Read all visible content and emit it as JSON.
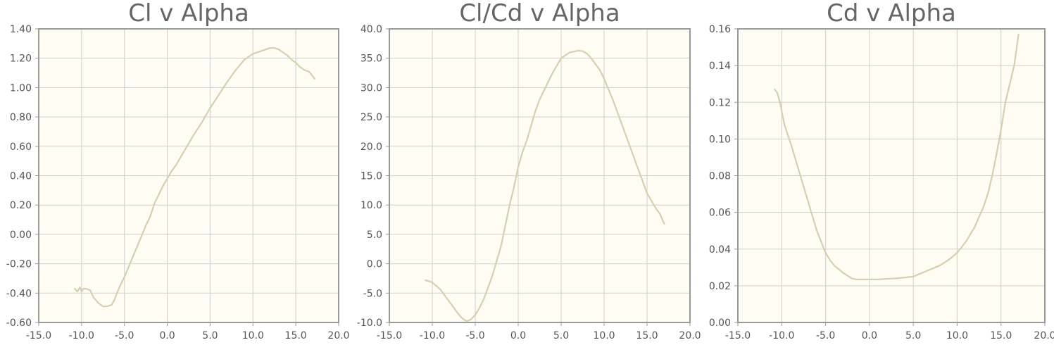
{
  "line_color": "#d6cfb0",
  "chart_data": [
    {
      "type": "line",
      "title": "Cl v Alpha",
      "xlim": [
        -15,
        20
      ],
      "ylim": [
        -0.6,
        1.4
      ],
      "x_ticks": [
        "-15.0",
        "-10.0",
        "-5.0",
        "0.0",
        "5.0",
        "10.0",
        "15.0",
        "20.0"
      ],
      "y_ticks": [
        "-0.60",
        "-0.40",
        "-0.20",
        "0.00",
        "0.20",
        "0.40",
        "0.60",
        "0.80",
        "1.00",
        "1.20",
        "1.40"
      ],
      "grid": true,
      "series": [
        {
          "x": [
            -10.8,
            -10.5,
            -10.2,
            -10.0,
            -9.8,
            -9.5,
            -9.0,
            -8.6,
            -8.3,
            -8.0,
            -7.5,
            -7.0,
            -6.5,
            -6.2,
            -6.0,
            -5.8,
            -5.5,
            -5.0,
            -4.5,
            -4.0,
            -3.5,
            -3.0,
            -2.5,
            -2.0,
            -1.5,
            -1.0,
            -0.5,
            0.0,
            0.5,
            1.0,
            2.0,
            3.0,
            4.0,
            5.0,
            6.0,
            7.0,
            8.0,
            9.0,
            10.0,
            11.0,
            12.0,
            12.5,
            13.0,
            13.5,
            14.0,
            14.5,
            15.0,
            15.5,
            16.0,
            16.5,
            16.8,
            17.2
          ],
          "y": [
            -0.37,
            -0.39,
            -0.36,
            -0.39,
            -0.37,
            -0.37,
            -0.38,
            -0.43,
            -0.45,
            -0.47,
            -0.49,
            -0.49,
            -0.48,
            -0.45,
            -0.42,
            -0.39,
            -0.35,
            -0.29,
            -0.22,
            -0.15,
            -0.08,
            -0.01,
            0.06,
            0.12,
            0.21,
            0.27,
            0.33,
            0.38,
            0.43,
            0.47,
            0.57,
            0.67,
            0.76,
            0.86,
            0.95,
            1.04,
            1.12,
            1.19,
            1.23,
            1.25,
            1.27,
            1.27,
            1.26,
            1.24,
            1.22,
            1.19,
            1.17,
            1.14,
            1.12,
            1.11,
            1.09,
            1.06
          ]
        }
      ]
    },
    {
      "type": "line",
      "title": "Cl/Cd v Alpha",
      "xlim": [
        -15,
        20
      ],
      "ylim": [
        -10,
        40
      ],
      "x_ticks": [
        "-15.0",
        "-10.0",
        "-5.0",
        "0.0",
        "5.0",
        "10.0",
        "15.0",
        "20.0"
      ],
      "y_ticks": [
        "-10.0",
        "-5.0",
        "0.0",
        "5.0",
        "10.0",
        "15.0",
        "20.0",
        "25.0",
        "30.0",
        "35.0",
        "40.0"
      ],
      "grid": true,
      "series": [
        {
          "x": [
            -10.8,
            -10.3,
            -10.0,
            -9.5,
            -9.0,
            -8.5,
            -8.0,
            -7.5,
            -7.0,
            -6.5,
            -6.0,
            -5.5,
            -5.0,
            -4.5,
            -4.0,
            -3.5,
            -3.0,
            -2.5,
            -2.0,
            -1.5,
            -1.0,
            -0.5,
            0.0,
            0.5,
            1.0,
            1.5,
            2.0,
            2.5,
            3.0,
            4.0,
            5.0,
            6.0,
            7.0,
            7.5,
            8.0,
            8.5,
            9.0,
            9.5,
            10.0,
            11.0,
            12.0,
            13.0,
            14.0,
            15.0,
            16.0,
            16.5,
            17.0
          ],
          "y": [
            -2.8,
            -3.0,
            -3.2,
            -3.8,
            -4.5,
            -5.5,
            -6.5,
            -7.5,
            -8.5,
            -9.3,
            -9.8,
            -9.5,
            -8.7,
            -7.5,
            -6.0,
            -4.0,
            -2.0,
            0.5,
            3.0,
            6.5,
            10.0,
            13.0,
            16.5,
            19.0,
            21.0,
            23.5,
            26.0,
            28.0,
            29.5,
            32.5,
            35.0,
            36.0,
            36.3,
            36.2,
            35.8,
            35.0,
            34.0,
            33.0,
            31.5,
            28.0,
            24.0,
            20.0,
            16.0,
            12.0,
            9.5,
            8.5,
            6.8
          ]
        }
      ]
    },
    {
      "type": "line",
      "title": "Cd v Alpha",
      "xlim": [
        -15,
        20
      ],
      "ylim": [
        0,
        0.16
      ],
      "x_ticks": [
        "-15.0",
        "-10.0",
        "-5.0",
        "0.0",
        "5.0",
        "10.0",
        "15.0",
        "20.0"
      ],
      "y_ticks": [
        "0.00",
        "0.02",
        "0.04",
        "0.06",
        "0.08",
        "0.10",
        "0.12",
        "0.14",
        "0.16"
      ],
      "grid": true,
      "series": [
        {
          "x": [
            -10.8,
            -10.5,
            -10.2,
            -10.0,
            -9.7,
            -9.5,
            -9.0,
            -8.5,
            -8.0,
            -7.5,
            -7.0,
            -6.5,
            -6.0,
            -5.5,
            -5.0,
            -4.5,
            -4.0,
            -3.5,
            -3.0,
            -2.5,
            -2.0,
            -1.5,
            -1.0,
            0.0,
            1.0,
            2.0,
            3.0,
            4.0,
            5.0,
            6.0,
            7.0,
            8.0,
            9.0,
            10.0,
            11.0,
            12.0,
            13.0,
            13.5,
            14.0,
            14.5,
            15.0,
            15.5,
            16.0,
            16.5,
            16.8,
            17.0
          ],
          "y": [
            0.127,
            0.125,
            0.12,
            0.115,
            0.108,
            0.105,
            0.098,
            0.09,
            0.082,
            0.074,
            0.066,
            0.058,
            0.05,
            0.044,
            0.038,
            0.034,
            0.031,
            0.029,
            0.027,
            0.0255,
            0.024,
            0.0235,
            0.0235,
            0.0235,
            0.0235,
            0.0238,
            0.024,
            0.0245,
            0.025,
            0.027,
            0.029,
            0.031,
            0.034,
            0.038,
            0.044,
            0.052,
            0.063,
            0.07,
            0.08,
            0.092,
            0.105,
            0.12,
            0.13,
            0.14,
            0.15,
            0.157
          ]
        }
      ]
    }
  ]
}
